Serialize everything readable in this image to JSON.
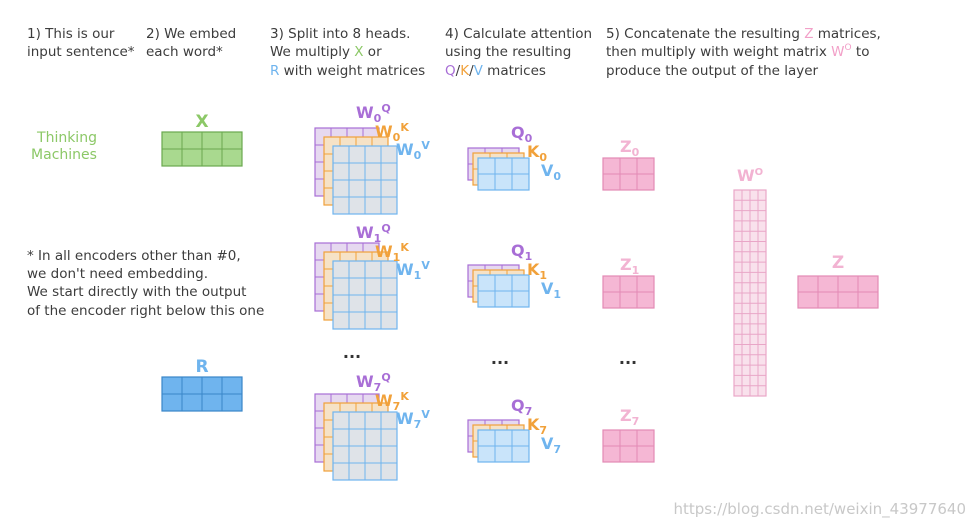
{
  "steps": {
    "s1": [
      "1) This is our",
      "input sentence*"
    ],
    "s2": [
      "2) We embed",
      "each word*"
    ],
    "s3_l1": "3) Split into 8 heads.",
    "s3_l2a": "We multiply ",
    "s3_l2x": "X",
    "s3_l2b": " or",
    "s3_l3r": "R",
    "s3_l3b": " with weight matrices",
    "s4_l1": "4) Calculate attention",
    "s4_l2": "using the resulting",
    "s4_q": "Q",
    "s4_slash1": "/",
    "s4_k": "K",
    "s4_slash2": "/",
    "s4_v": "V",
    "s4_tail": " matrices",
    "s5_l1a": "5) Concatenate the resulting ",
    "s5_z": "Z",
    "s5_l1b": " matrices,",
    "s5_l2a": "then multiply with weight matrix ",
    "s5_wo": "W",
    "s5_wo_sup": "O",
    "s5_l2b": " to",
    "s5_l3": "produce the output of the layer"
  },
  "input_words": [
    "Thinking",
    "Machines"
  ],
  "note": [
    "* In all encoders other than #0,",
    "we don't need embedding.",
    "We start directly with the output",
    "of the encoder right below this one"
  ],
  "labels": {
    "x": "X",
    "r": "R",
    "wo": "W",
    "wo_sup": "O",
    "z": "Z",
    "ellipsis": "..."
  },
  "heads": [
    {
      "idx": "0",
      "wq": "W",
      "wk": "W",
      "wv": "W",
      "q": "Q",
      "k": "K",
      "v": "V",
      "z": "Z"
    },
    {
      "idx": "1",
      "wq": "W",
      "wk": "W",
      "wv": "W",
      "q": "Q",
      "k": "K",
      "v": "V",
      "z": "Z"
    },
    {
      "idx": "7",
      "wq": "W",
      "wk": "W",
      "wv": "W",
      "q": "Q",
      "k": "K",
      "v": "V",
      "z": "Z"
    }
  ],
  "head_sup": {
    "q": "Q",
    "k": "K",
    "v": "V"
  },
  "watermark": "https://blog.csdn.net/weixin_43977640",
  "colors": {
    "green": "#8cc867",
    "blue": "#6fb4ee",
    "purple": "#a86ed6",
    "orange": "#f1a13a",
    "pink": "#f2a0c8",
    "text": "#3c3c3c"
  }
}
